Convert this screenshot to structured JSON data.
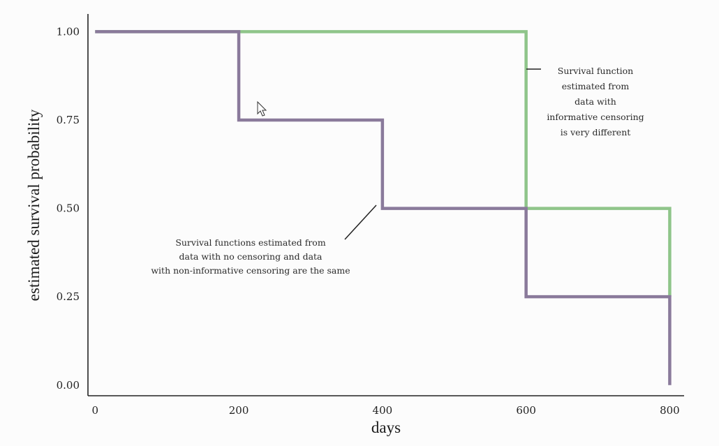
{
  "chart_data": {
    "type": "line",
    "title": "",
    "xlabel": "days",
    "ylabel": "estimated survival probability",
    "xlim": [
      -10,
      820
    ],
    "ylim": [
      -0.03,
      1.05
    ],
    "xticks": [
      0,
      200,
      400,
      600,
      800
    ],
    "xtick_labels": [
      "0",
      "200",
      "400",
      "600",
      "800"
    ],
    "yticks": [
      0.0,
      0.25,
      0.5,
      0.75,
      1.0
    ],
    "ytick_labels": [
      "0.00",
      "0.25",
      "0.50",
      "0.75",
      "1.00"
    ],
    "grid": false,
    "step": true,
    "series": [
      {
        "name": "",
        "color": "#8fc58a",
        "x": [
          0,
          600,
          800,
          800
        ],
        "y": [
          1.0,
          0.5,
          0.25,
          0.25
        ]
      },
      {
        "name": "",
        "color": "#8a7a9b",
        "x": [
          0,
          200,
          400,
          600,
          800
        ],
        "y": [
          1.0,
          0.75,
          0.5,
          0.25,
          0.0
        ]
      }
    ],
    "annotations": [
      {
        "lines": [
          "Survival function",
          "estimated from",
          "data with",
          "informative censoring",
          "is very different"
        ]
      },
      {
        "lines": [
          "Survival functions estimated from",
          "data with no censoring and data",
          "with non-informative censoring are the same"
        ]
      }
    ]
  }
}
